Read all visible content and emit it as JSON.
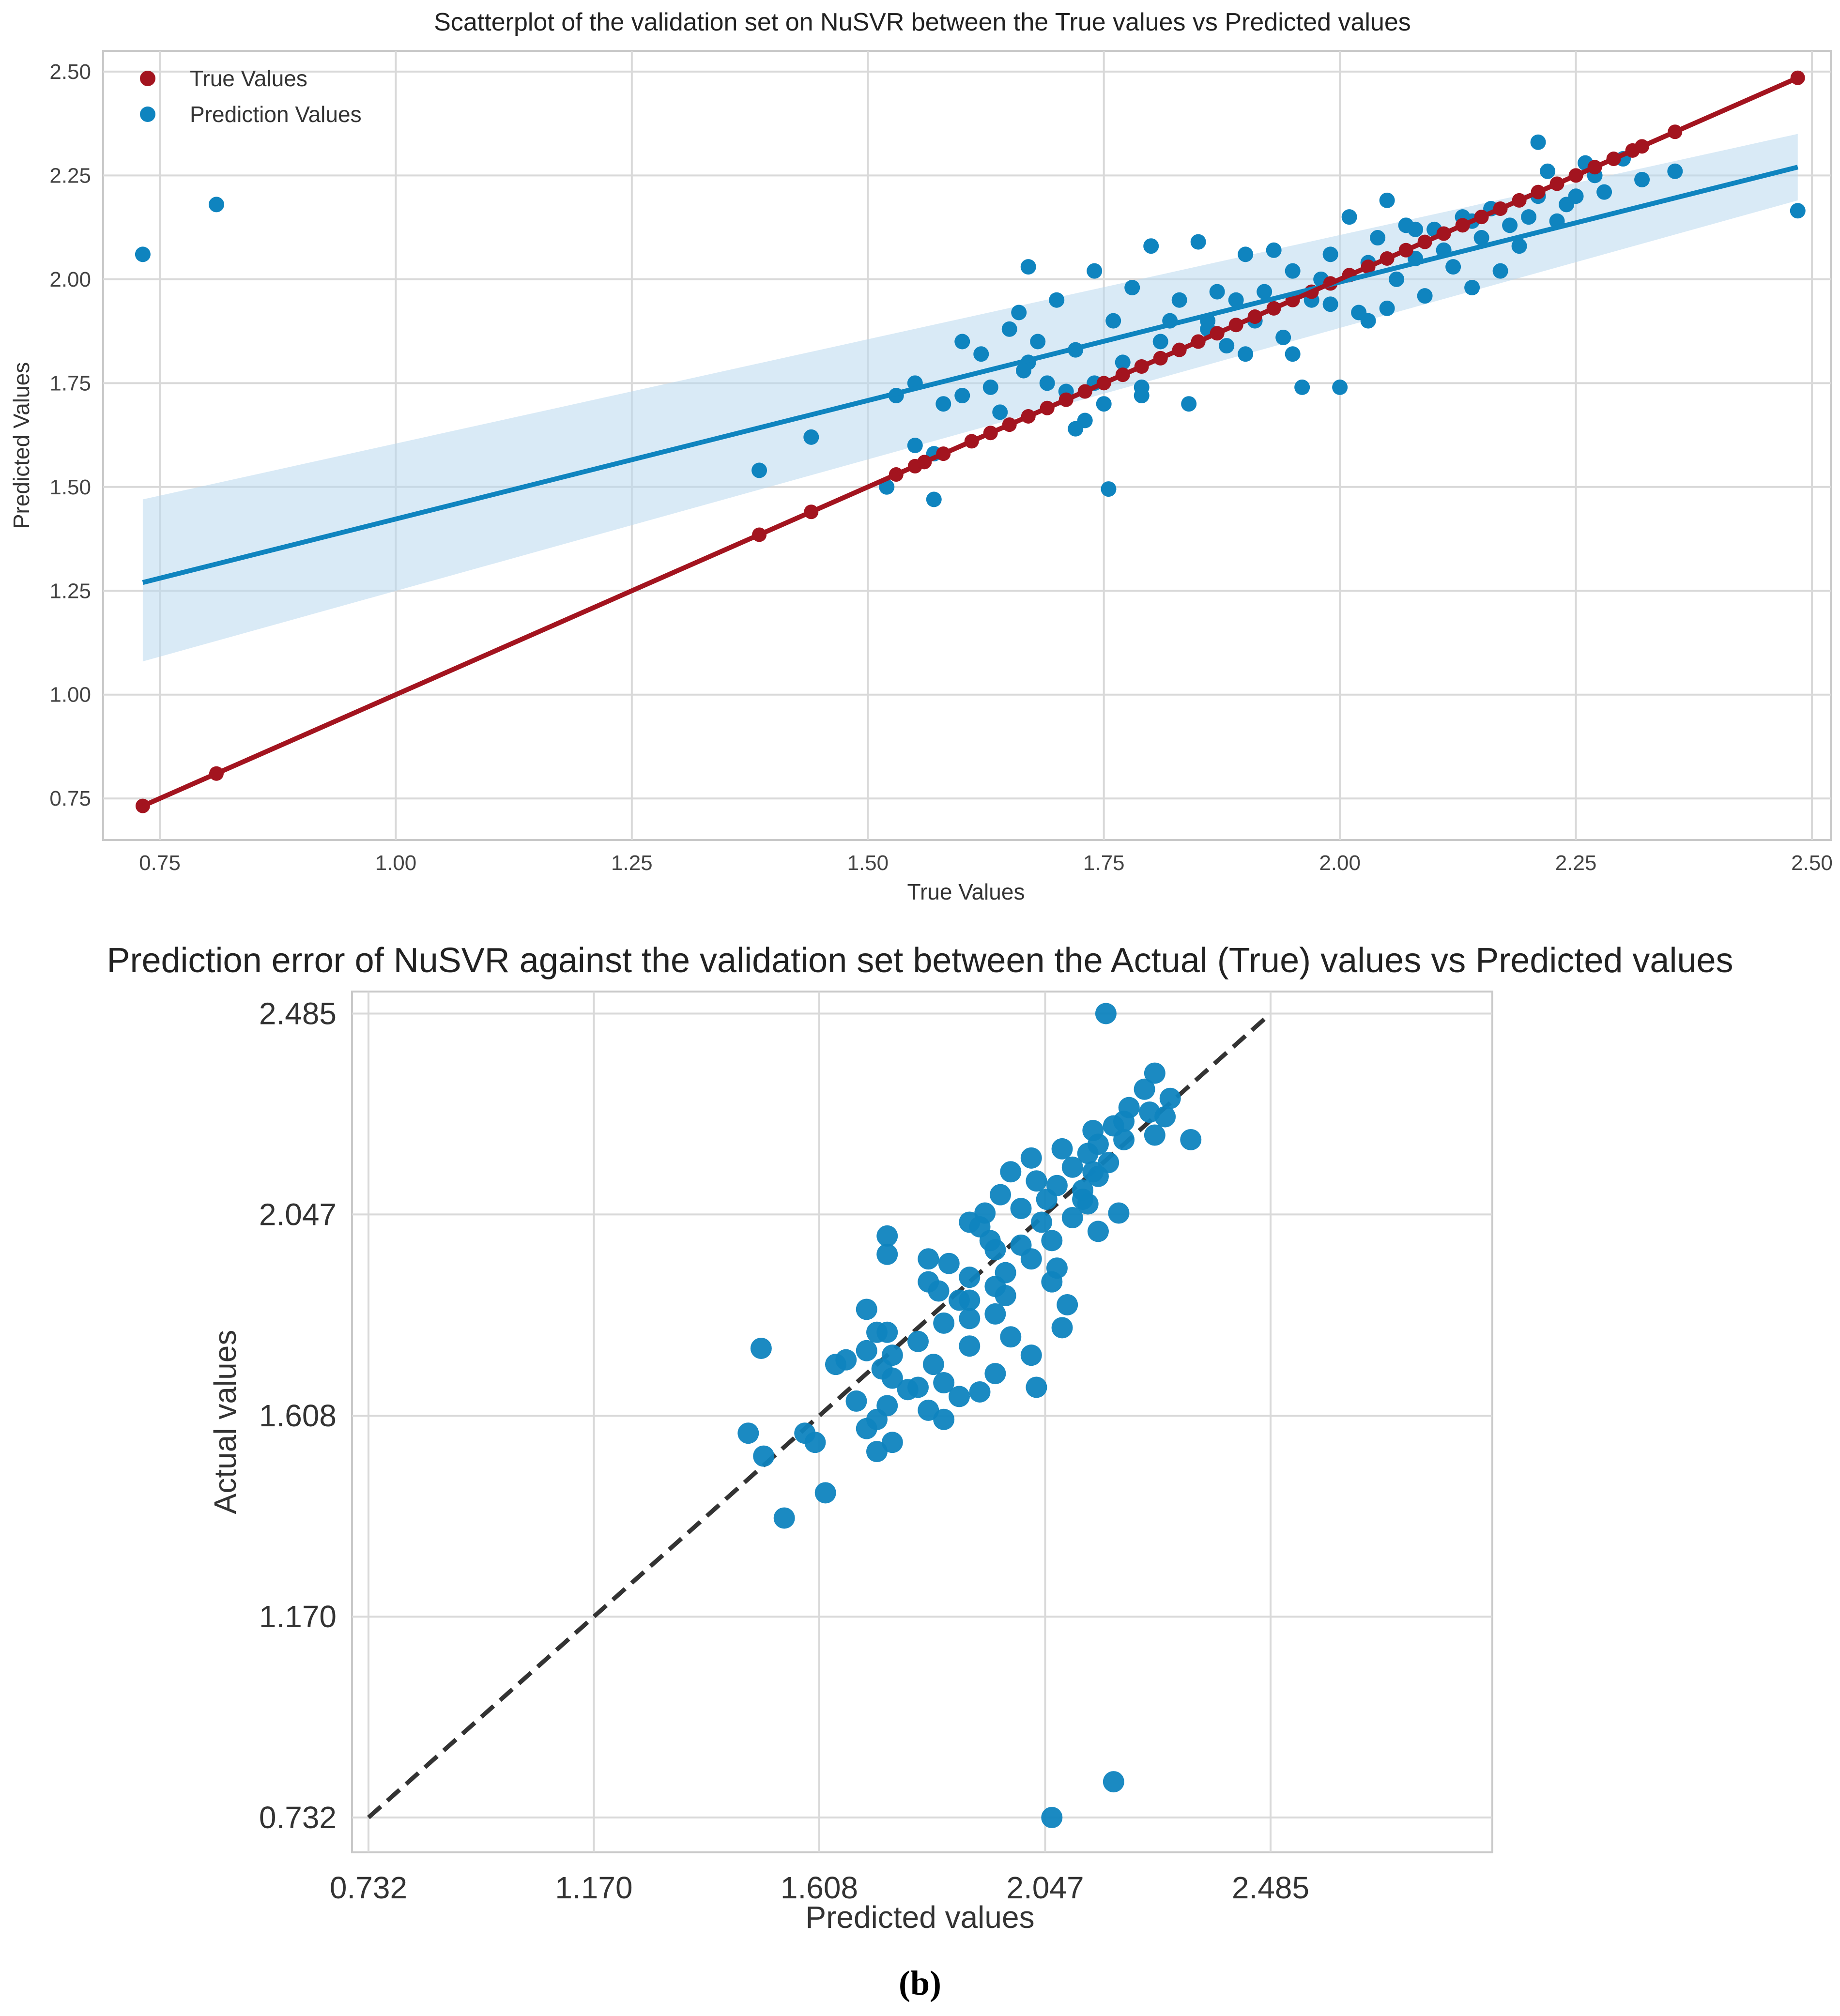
{
  "colors": {
    "true_values": "#a3141f",
    "prediction_values": "#0f84bf",
    "confidence_band": "#b9d8ee",
    "identity_line": "#333333"
  },
  "caption": {
    "open": "(",
    "letter": "b",
    "close": ")"
  },
  "chart_data": [
    {
      "type": "scatter",
      "title": "Scatterplot of the validation set on NuSVR between the True values vs Predicted values",
      "xlabel": "True Values",
      "ylabel": "Predicted Values",
      "xlim": [
        0.69,
        2.52
      ],
      "ylim": [
        0.65,
        2.55
      ],
      "xticks": [
        "0.75",
        "1.00",
        "1.25",
        "1.50",
        "1.75",
        "2.00",
        "2.25",
        "2.50"
      ],
      "yticks": [
        "0.75",
        "1.00",
        "1.25",
        "1.50",
        "1.75",
        "2.00",
        "2.25",
        "2.50"
      ],
      "grid": true,
      "legend": {
        "position": "top-left",
        "entries": [
          "True Values",
          "Prediction Values"
        ]
      },
      "regression": {
        "true_values": {
          "x": [
            0.732,
            2.485
          ],
          "y": [
            0.732,
            2.485
          ]
        },
        "prediction_values": {
          "x": [
            0.732,
            2.485
          ],
          "y": [
            1.27,
            2.27
          ]
        },
        "band_lower": [
          1.08,
          2.19
        ],
        "band_upper": [
          1.47,
          2.35
        ]
      },
      "series": [
        {
          "name": "True Values",
          "x": [
            0.732,
            0.81,
            1.385,
            1.44,
            1.53,
            1.55,
            1.56,
            1.58,
            1.61,
            1.63,
            1.65,
            1.67,
            1.69,
            1.71,
            1.73,
            1.75,
            1.77,
            1.79,
            1.81,
            1.83,
            1.85,
            1.87,
            1.89,
            1.91,
            1.93,
            1.95,
            1.97,
            1.99,
            2.01,
            2.03,
            2.05,
            2.07,
            2.09,
            2.11,
            2.13,
            2.15,
            2.17,
            2.19,
            2.21,
            2.23,
            2.25,
            2.27,
            2.29,
            2.31,
            2.32,
            2.355,
            2.485
          ],
          "y": [
            0.732,
            0.81,
            1.385,
            1.44,
            1.53,
            1.55,
            1.56,
            1.58,
            1.61,
            1.63,
            1.65,
            1.67,
            1.69,
            1.71,
            1.73,
            1.75,
            1.77,
            1.79,
            1.81,
            1.83,
            1.85,
            1.87,
            1.89,
            1.91,
            1.93,
            1.95,
            1.97,
            1.99,
            2.01,
            2.03,
            2.05,
            2.07,
            2.09,
            2.11,
            2.13,
            2.15,
            2.17,
            2.19,
            2.21,
            2.23,
            2.25,
            2.27,
            2.29,
            2.31,
            2.32,
            2.355,
            2.485
          ]
        },
        {
          "name": "Prediction Values",
          "x": [
            0.732,
            0.81,
            1.385,
            1.44,
            1.52,
            1.53,
            1.55,
            1.55,
            1.57,
            1.58,
            1.6,
            1.6,
            1.62,
            1.63,
            1.64,
            1.65,
            1.66,
            1.67,
            1.67,
            1.68,
            1.69,
            1.7,
            1.71,
            1.72,
            1.73,
            1.74,
            1.74,
            1.75,
            1.76,
            1.77,
            1.78,
            1.79,
            1.8,
            1.81,
            1.82,
            1.83,
            1.84,
            1.85,
            1.86,
            1.87,
            1.88,
            1.89,
            1.9,
            1.91,
            1.92,
            1.93,
            1.94,
            1.95,
            1.96,
            1.97,
            1.98,
            1.99,
            2.0,
            2.01,
            2.02,
            2.03,
            2.04,
            2.05,
            2.06,
            2.07,
            2.08,
            2.09,
            2.1,
            2.11,
            2.12,
            2.13,
            2.14,
            2.15,
            2.16,
            2.17,
            2.18,
            2.19,
            2.2,
            2.21,
            2.22,
            2.23,
            2.24,
            2.25,
            2.26,
            2.27,
            2.28,
            2.3,
            2.32,
            2.355,
            2.485,
            1.755,
            1.57,
            1.665,
            1.79,
            1.86,
            1.95,
            1.99,
            2.03,
            2.21,
            2.08,
            1.72,
            1.9,
            2.14,
            2.05
          ],
          "y": [
            2.06,
            2.18,
            1.54,
            1.62,
            1.5,
            1.72,
            1.6,
            1.75,
            1.47,
            1.7,
            1.85,
            1.72,
            1.82,
            1.74,
            1.68,
            1.88,
            1.92,
            1.8,
            2.03,
            1.85,
            1.75,
            1.95,
            1.73,
            1.83,
            1.66,
            1.75,
            2.02,
            1.7,
            1.9,
            1.8,
            1.98,
            1.74,
            2.08,
            1.85,
            1.9,
            1.95,
            1.7,
            2.09,
            1.88,
            1.97,
            1.84,
            1.95,
            2.06,
            1.9,
            1.97,
            2.07,
            1.86,
            2.02,
            1.74,
            1.95,
            2.0,
            2.06,
            1.74,
            2.15,
            1.92,
            2.04,
            2.1,
            1.93,
            2.0,
            2.13,
            2.05,
            1.96,
            2.12,
            2.07,
            2.03,
            2.15,
            1.98,
            2.1,
            2.17,
            2.02,
            2.13,
            2.08,
            2.15,
            2.2,
            2.26,
            2.14,
            2.18,
            2.2,
            2.28,
            2.25,
            2.21,
            2.29,
            2.24,
            2.26,
            2.165,
            1.495,
            1.58,
            1.78,
            1.72,
            1.9,
            1.82,
            1.94,
            1.9,
            2.33,
            2.12,
            1.64,
            1.82,
            2.14,
            2.19
          ]
        }
      ]
    },
    {
      "type": "scatter",
      "title": "Prediction error of NuSVR against the validation set between the Actual (True) values vs Predicted values",
      "xlabel": "Predicted values",
      "ylabel": "Actual values",
      "xlim": [
        0.7,
        2.916
      ],
      "ylim": [
        0.656,
        2.533
      ],
      "xticks": [
        "0.732",
        "1.170",
        "1.608",
        "2.047",
        "2.485"
      ],
      "yticks": [
        "0.732",
        "1.170",
        "1.608",
        "2.047",
        "2.485"
      ],
      "grid": true,
      "identity_line": {
        "x": [
          0.732,
          2.485
        ],
        "y": [
          0.732,
          2.485
        ]
      },
      "series": [
        {
          "name": "Prediction Values",
          "x": [
            2.06,
            2.18,
            1.54,
            1.62,
            1.5,
            1.72,
            1.6,
            1.75,
            1.47,
            1.7,
            1.85,
            1.72,
            1.82,
            1.74,
            1.68,
            1.88,
            1.92,
            1.8,
            2.03,
            1.85,
            1.75,
            1.95,
            1.73,
            1.83,
            1.66,
            1.75,
            2.02,
            1.7,
            1.9,
            1.8,
            1.98,
            1.74,
            2.08,
            1.85,
            1.9,
            1.95,
            1.7,
            2.09,
            1.88,
            1.97,
            1.84,
            1.95,
            2.06,
            1.9,
            1.97,
            2.07,
            1.86,
            2.02,
            1.74,
            1.95,
            2.0,
            2.06,
            1.74,
            2.15,
            1.92,
            2.04,
            2.1,
            1.93,
            2.0,
            2.13,
            2.05,
            1.96,
            2.12,
            2.07,
            2.03,
            2.15,
            1.98,
            2.1,
            2.17,
            2.02,
            2.13,
            2.08,
            2.15,
            2.2,
            2.26,
            2.14,
            2.18,
            2.2,
            2.28,
            2.25,
            2.21,
            2.29,
            2.24,
            2.26,
            2.165,
            1.495,
            1.58,
            1.78,
            1.72,
            1.9,
            1.82,
            1.94,
            1.9,
            2.33,
            2.12,
            1.64,
            1.82,
            2.14,
            2.19
          ],
          "y": [
            0.732,
            0.81,
            1.385,
            1.44,
            1.52,
            1.53,
            1.55,
            1.55,
            1.57,
            1.58,
            1.6,
            1.6,
            1.62,
            1.63,
            1.64,
            1.65,
            1.66,
            1.67,
            1.67,
            1.68,
            1.69,
            1.7,
            1.71,
            1.72,
            1.73,
            1.74,
            1.74,
            1.75,
            1.76,
            1.77,
            1.78,
            1.79,
            1.8,
            1.81,
            1.82,
            1.83,
            1.84,
            1.85,
            1.86,
            1.87,
            1.88,
            1.89,
            1.9,
            1.91,
            1.92,
            1.93,
            1.94,
            1.95,
            1.96,
            1.97,
            1.98,
            1.99,
            2.0,
            2.01,
            2.02,
            2.03,
            2.04,
            2.05,
            2.06,
            2.07,
            2.08,
            2.09,
            2.1,
            2.11,
            2.12,
            2.13,
            2.14,
            2.15,
            2.16,
            2.17,
            2.18,
            2.19,
            2.2,
            2.21,
            2.22,
            2.23,
            2.24,
            2.25,
            2.26,
            2.27,
            2.28,
            2.3,
            2.32,
            2.355,
            2.485,
            1.755,
            1.57,
            1.665,
            1.79,
            1.86,
            1.95,
            1.99,
            2.03,
            2.21,
            2.08,
            1.72,
            1.9,
            2.14,
            2.05
          ]
        }
      ]
    }
  ]
}
